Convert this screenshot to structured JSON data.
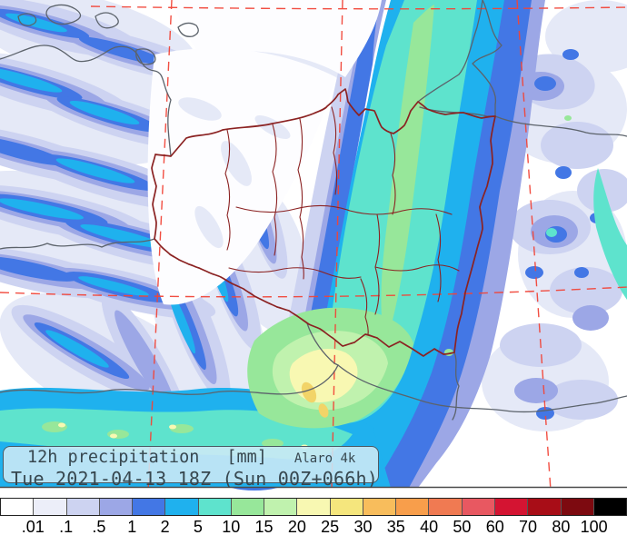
{
  "title_box": {
    "product": "12h precipitation",
    "units": "[mm]",
    "model": "Alaro 4k",
    "valid_line": "Tue 2021-04-13 18Z (Sun 00Z+066h)"
  },
  "legend": {
    "thresholds": [
      ".01",
      ".1",
      ".5",
      "1",
      "2",
      "5",
      "10",
      "15",
      "20",
      "25",
      "30",
      "35",
      "40",
      "50",
      "60",
      "70",
      "80",
      "100"
    ],
    "colors": [
      "#ffffff",
      "#eceef9",
      "#cdd3f1",
      "#9ca7e6",
      "#4377e5",
      "#1fb1ee",
      "#5ee3cd",
      "#97e79a",
      "#c0f2ae",
      "#f8f8b2",
      "#f5e67d",
      "#f8bd5c",
      "#f89e4b",
      "#f07a52",
      "#e85861",
      "#d41432",
      "#a80d17",
      "#7d0a10",
      "#000000"
    ]
  },
  "map_colors": {
    "poland_border": "#8b2222",
    "foreign_border": "#5c636b",
    "coastline": "#5c636b",
    "graticule": "#f14538",
    "title_box_bg": "#cee9f6",
    "title_text": "#37474f"
  }
}
